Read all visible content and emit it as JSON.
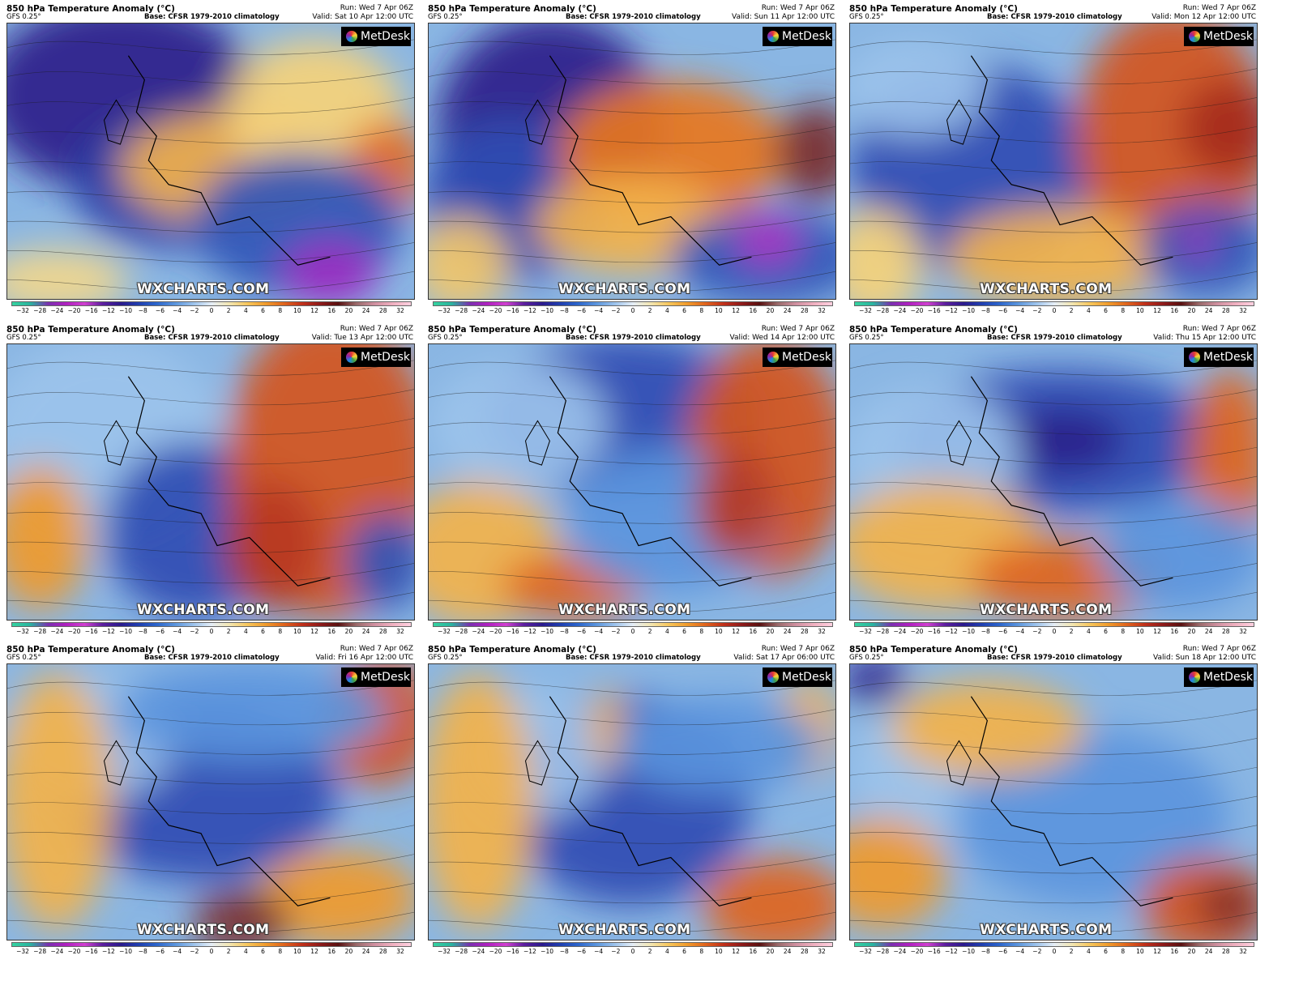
{
  "common": {
    "title": "850 hPa Temperature Anomaly (°C)",
    "model": "GFS 0.25°",
    "base": "Base: CFSR 1979-2010 climatology",
    "run": "Run: Wed 7 Apr 06Z",
    "logo": "MetDesk",
    "watermark": "WXCHARTS.COM",
    "colorbar_ticks": [
      "−32",
      "−28",
      "−24",
      "−20",
      "−16",
      "−12",
      "−10",
      "−8",
      "−6",
      "−4",
      "−2",
      "0",
      "2",
      "4",
      "6",
      "8",
      "10",
      "12",
      "16",
      "20",
      "24",
      "28",
      "32"
    ],
    "colorbar_colors": [
      "#35d3a0",
      "#2ab3a0",
      "#7a2fb0",
      "#b020c0",
      "#d040d0",
      "#5b1e9e",
      "#2a1a8c",
      "#1f3fb0",
      "#2c66cc",
      "#5b95dd",
      "#9cc3ec",
      "#e6eef7",
      "#f3e6b0",
      "#f7c55a",
      "#f09a2b",
      "#e0641c",
      "#c0301a",
      "#8e1a1a",
      "#5a1010",
      "#9a6a6a",
      "#d090a0",
      "#f0b0c0",
      "#ffd0e0"
    ]
  },
  "panels": [
    {
      "valid": "Valid: Sat 10 Apr 12:00 UTC",
      "sub": "GFS 0.25°"
    },
    {
      "valid": "Valid: Sun 11 Apr 12:00 UTC",
      "sub": "GFS 0.25°"
    },
    {
      "valid": "Valid: Mon 12 Apr 12:00 UTC",
      "sub": "GFS 0.25°"
    },
    {
      "valid": "Valid: Tue 13 Apr 12:00 UTC",
      "sub": "GFS 0.25°"
    },
    {
      "valid": "Valid: Wed 14 Apr 12:00 UTC",
      "sub": "GFS 0.25°"
    },
    {
      "valid": "Valid: Thu 15 Apr 12:00 UTC",
      "sub": "GFS 0.25°"
    },
    {
      "valid": "Valid: Fri 16 Apr 12:00 UTC",
      "sub": "GFS 0.25°"
    },
    {
      "valid": "Valid: Sat 17 Apr 06:00 UTC",
      "sub": "GFS 0.25°"
    },
    {
      "valid": "Valid: Sun 18 Apr 12:00 UTC",
      "sub": "GFS 0.25°"
    }
  ]
}
